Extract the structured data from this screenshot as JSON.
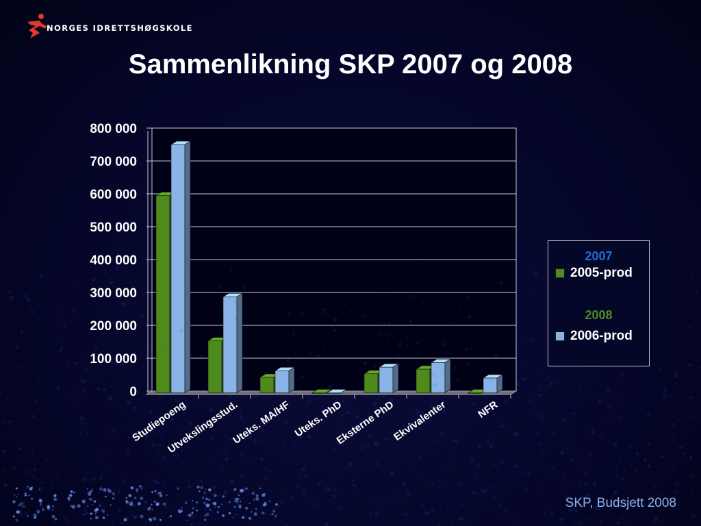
{
  "header": {
    "logo_text": "NORGES IDRETTSHØGSKOLE",
    "logo_icon": "running-figure-icon"
  },
  "title": "Sammenlikning SKP 2007 og 2008",
  "footer": "SKP, Budsjett 2008",
  "legend": {
    "year1": "2007",
    "entry1": "2005-prod",
    "year2": "2008",
    "entry2": "2006-prod"
  },
  "colors": {
    "series1": "#4f8a1c",
    "series2": "#8ab4e8",
    "year1": "#1f6fd6",
    "year2": "#4f8a1c",
    "footer": "#8fb0ea"
  },
  "chart_data": {
    "type": "bar",
    "categories": [
      "Studiepoeng",
      "Utvekslingsstud.",
      "Uteks. MA/HF",
      "Uteks. PhD",
      "Eksterne PhD",
      "Ekvivalenter",
      "NFR"
    ],
    "series": [
      {
        "name": "2005-prod",
        "values": [
          600000,
          158000,
          47000,
          0,
          58000,
          72000,
          0
        ]
      },
      {
        "name": "2006-prod",
        "values": [
          755000,
          292000,
          67000,
          0,
          78000,
          92000,
          45000
        ]
      }
    ],
    "yticks": [
      "0",
      "100 000",
      "200 000",
      "300 000",
      "400 000",
      "500 000",
      "600 000",
      "700 000",
      "800 000"
    ],
    "ylim": [
      0,
      800000
    ],
    "grid": true,
    "legend_position": "right"
  }
}
